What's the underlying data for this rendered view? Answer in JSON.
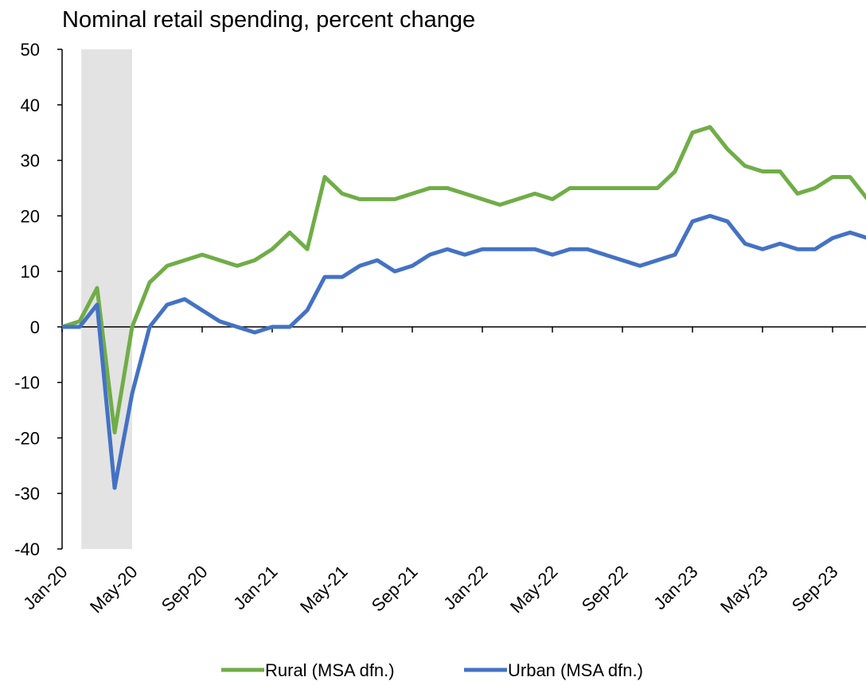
{
  "chart_data": {
    "type": "line",
    "title": "Nominal retail spending, percent change",
    "categories": [
      "Jan-20",
      null,
      null,
      null,
      "May-20",
      null,
      null,
      null,
      "Sep-20",
      null,
      null,
      null,
      "Jan-21",
      null,
      null,
      null,
      "May-21",
      null,
      null,
      null,
      "Sep-21",
      null,
      null,
      null,
      "Jan-22",
      null,
      null,
      null,
      "May-22",
      null,
      null,
      null,
      "Sep-22",
      null,
      null,
      null,
      "Jan-23",
      null,
      null,
      null,
      "May-23",
      null,
      null,
      null,
      "Sep-23",
      null,
      null
    ],
    "series": [
      {
        "name": "Rural (MSA dfn.)",
        "color": "#70ad47",
        "values": [
          0,
          1,
          7,
          -19,
          0,
          8,
          11,
          12,
          13,
          12,
          11,
          12,
          14,
          17,
          14,
          27,
          24,
          23,
          23,
          23,
          24,
          25,
          25,
          24,
          23,
          22,
          23,
          24,
          23,
          25,
          25,
          25,
          25,
          25,
          25,
          28,
          35,
          36,
          32,
          29,
          28,
          28,
          24,
          25,
          27,
          27,
          23
        ]
      },
      {
        "name": "Urban (MSA dfn.)",
        "color": "#4472c4",
        "values": [
          0,
          0,
          4,
          -29,
          -12,
          0,
          4,
          5,
          3,
          1,
          0,
          -1,
          0,
          0,
          3,
          9,
          9,
          11,
          12,
          10,
          11,
          13,
          14,
          13,
          14,
          14,
          14,
          14,
          13,
          14,
          14,
          13,
          12,
          11,
          12,
          13,
          19,
          20,
          19,
          15,
          14,
          15,
          14,
          14,
          16,
          17,
          16
        ]
      }
    ],
    "shade_range": [
      1.1,
      4
    ],
    "ylim": [
      -40,
      50
    ],
    "yticks": [
      -40,
      -30,
      -20,
      -10,
      0,
      10,
      20,
      30,
      40,
      50
    ],
    "legend": "bottom"
  }
}
